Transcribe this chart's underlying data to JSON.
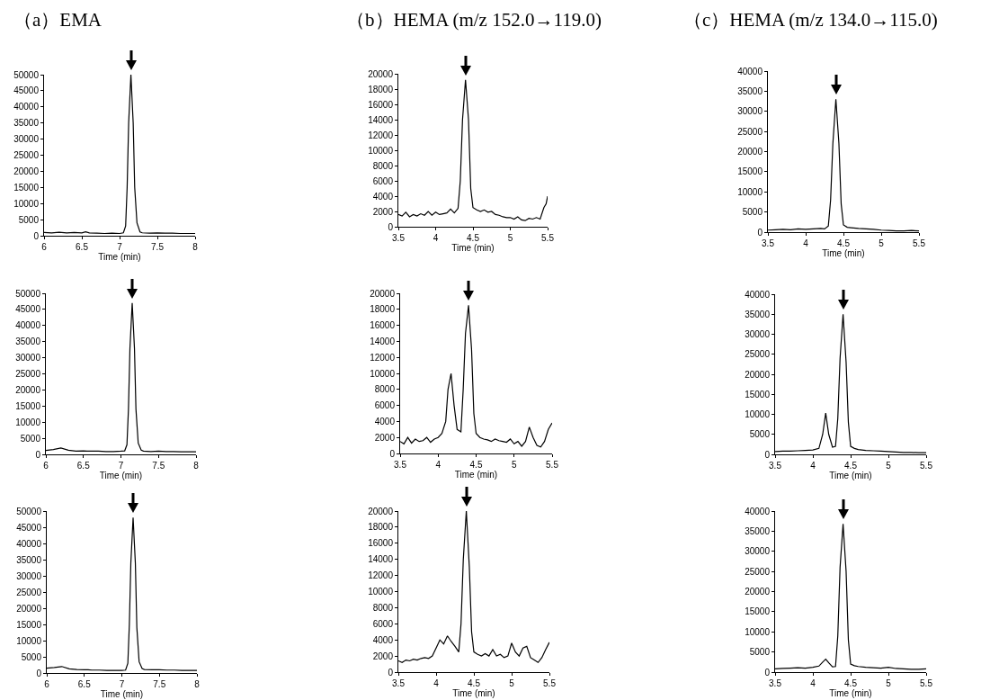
{
  "chart_data": [
    {
      "type": "line",
      "title": "（a）EMA",
      "xlabel": "Time (min)",
      "xlim": [
        6,
        8
      ],
      "xticks": [
        6,
        6.5,
        7,
        7.5,
        8
      ],
      "ylim": [
        0,
        50000
      ],
      "yticks": [
        0,
        5000,
        10000,
        15000,
        20000,
        25000,
        30000,
        35000,
        40000,
        45000,
        50000
      ],
      "grid": false,
      "marker": "none",
      "line_style": "solid",
      "series": [
        {
          "color": "#000000",
          "x": [
            6,
            6.1,
            6.2,
            6.3,
            6.4,
            6.5,
            6.55,
            6.6,
            6.7,
            6.8,
            6.9,
            7,
            7.05,
            7.08,
            7.1,
            7.12,
            7.15,
            7.18,
            7.2,
            7.23,
            7.27,
            7.3,
            7.4,
            7.5,
            7.6,
            7.7,
            7.8,
            7.9,
            8
          ],
          "values": [
            1000,
            900,
            1100,
            900,
            1000,
            900,
            1200,
            900,
            800,
            700,
            800,
            700,
            900,
            3000,
            15000,
            35000,
            50000,
            35000,
            15000,
            4000,
            1200,
            900,
            800,
            900,
            800,
            800,
            700,
            700,
            700
          ]
        }
      ]
    },
    {
      "type": "line",
      "title": "（b）HEMA (m/z 152.0→119.0)",
      "xlabel": "Time (min)",
      "xlim": [
        3.5,
        5.5
      ],
      "xticks": [
        3.5,
        4,
        4.5,
        5,
        5.5
      ],
      "ylim": [
        0,
        20000
      ],
      "yticks": [
        0,
        2000,
        4000,
        6000,
        8000,
        10000,
        12000,
        14000,
        16000,
        18000,
        20000
      ],
      "grid": false,
      "marker": "none",
      "line_style": "solid",
      "series": [
        {
          "color": "#000000",
          "x": [
            3.5,
            3.55,
            3.6,
            3.65,
            3.7,
            3.75,
            3.8,
            3.85,
            3.9,
            3.95,
            4,
            4.05,
            4.1,
            4.15,
            4.2,
            4.25,
            4.3,
            4.33,
            4.36,
            4.4,
            4.44,
            4.47,
            4.5,
            4.55,
            4.6,
            4.65,
            4.7,
            4.75,
            4.8,
            4.85,
            4.9,
            4.95,
            5,
            5.05,
            5.1,
            5.15,
            5.2,
            5.25,
            5.3,
            5.35,
            5.4,
            5.45,
            5.48,
            5.5
          ],
          "values": [
            1600,
            1400,
            1900,
            1300,
            1600,
            1400,
            1700,
            1500,
            2000,
            1500,
            1900,
            1600,
            1700,
            1800,
            2300,
            1800,
            2400,
            6000,
            14000,
            19200,
            14000,
            5000,
            2500,
            2200,
            2000,
            2200,
            1900,
            2000,
            1600,
            1500,
            1300,
            1200,
            1200,
            1000,
            1300,
            900,
            800,
            1100,
            1000,
            1200,
            1000,
            2500,
            3000,
            4000
          ]
        }
      ]
    },
    {
      "type": "line",
      "title": "（c）HEMA (m/z 134.0→115.0)",
      "xlabel": "Time (min)",
      "xlim": [
        3.5,
        5.5
      ],
      "xticks": [
        3.5,
        4,
        4.5,
        5,
        5.5
      ],
      "ylim": [
        0,
        40000
      ],
      "yticks": [
        0,
        5000,
        10000,
        15000,
        20000,
        25000,
        30000,
        35000,
        40000
      ],
      "grid": false,
      "marker": "none",
      "line_style": "solid",
      "series": [
        {
          "color": "#000000",
          "x": [
            3.5,
            3.6,
            3.7,
            3.8,
            3.9,
            4,
            4.1,
            4.2,
            4.25,
            4.3,
            4.33,
            4.36,
            4.4,
            4.44,
            4.47,
            4.5,
            4.55,
            4.6,
            4.7,
            4.8,
            4.9,
            5,
            5.1,
            5.2,
            5.3,
            5.4,
            5.5
          ],
          "values": [
            500,
            600,
            700,
            600,
            800,
            700,
            800,
            900,
            800,
            1500,
            8000,
            22000,
            33000,
            22000,
            7000,
            1800,
            1200,
            1100,
            900,
            800,
            700,
            500,
            400,
            300,
            300,
            400,
            300
          ]
        }
      ]
    },
    {
      "type": "line",
      "xlabel": "Time (min)",
      "xlim": [
        6,
        8
      ],
      "xticks": [
        6,
        6.5,
        7,
        7.5,
        8
      ],
      "ylim": [
        0,
        50000
      ],
      "yticks": [
        0,
        5000,
        10000,
        15000,
        20000,
        25000,
        30000,
        35000,
        40000,
        45000,
        50000
      ],
      "grid": false,
      "marker": "none",
      "line_style": "solid",
      "series": [
        {
          "color": "#000000",
          "x": [
            6,
            6.1,
            6.2,
            6.3,
            6.4,
            6.5,
            6.55,
            6.6,
            6.7,
            6.8,
            6.9,
            7,
            7.05,
            7.08,
            7.1,
            7.12,
            7.15,
            7.18,
            7.2,
            7.23,
            7.27,
            7.3,
            7.4,
            7.5,
            7.6,
            7.7,
            7.8,
            7.9,
            8
          ],
          "values": [
            1200,
            1500,
            2000,
            1300,
            1000,
            1100,
            1000,
            1000,
            1000,
            900,
            900,
            1000,
            1100,
            3000,
            14000,
            33000,
            47000,
            33000,
            14000,
            3500,
            1300,
            1000,
            900,
            1000,
            900,
            900,
            800,
            800,
            800
          ]
        }
      ]
    },
    {
      "type": "line",
      "xlabel": "Time (min)",
      "xlim": [
        3.5,
        5.5
      ],
      "xticks": [
        3.5,
        4,
        4.5,
        5,
        5.5
      ],
      "ylim": [
        0,
        20000
      ],
      "yticks": [
        0,
        2000,
        4000,
        6000,
        8000,
        10000,
        12000,
        14000,
        16000,
        18000,
        20000
      ],
      "grid": false,
      "marker": "none",
      "line_style": "solid",
      "series": [
        {
          "color": "#000000",
          "x": [
            3.5,
            3.55,
            3.6,
            3.65,
            3.7,
            3.75,
            3.8,
            3.85,
            3.9,
            3.95,
            4,
            4.05,
            4.1,
            4.13,
            4.17,
            4.21,
            4.25,
            4.3,
            4.33,
            4.36,
            4.4,
            4.44,
            4.47,
            4.5,
            4.55,
            4.6,
            4.65,
            4.7,
            4.75,
            4.8,
            4.85,
            4.9,
            4.95,
            5,
            5.05,
            5.1,
            5.15,
            5.2,
            5.25,
            5.3,
            5.35,
            5.4,
            5.45,
            5.5
          ],
          "values": [
            1500,
            1200,
            2000,
            1300,
            1800,
            1500,
            1600,
            2000,
            1400,
            1800,
            2000,
            2500,
            4000,
            8000,
            10000,
            6000,
            3000,
            2700,
            8000,
            15000,
            18500,
            13000,
            5000,
            2500,
            2000,
            1800,
            1700,
            1500,
            1800,
            1600,
            1500,
            1400,
            1800,
            1200,
            1500,
            900,
            1500,
            3300,
            2000,
            1000,
            800,
            1500,
            3000,
            3800
          ]
        }
      ]
    },
    {
      "type": "line",
      "xlabel": "Time (min)",
      "xlim": [
        3.5,
        5.5
      ],
      "xticks": [
        3.5,
        4,
        4.5,
        5,
        5.5
      ],
      "ylim": [
        0,
        40000
      ],
      "yticks": [
        0,
        5000,
        10000,
        15000,
        20000,
        25000,
        30000,
        35000,
        40000
      ],
      "grid": false,
      "marker": "none",
      "line_style": "solid",
      "series": [
        {
          "color": "#000000",
          "x": [
            3.5,
            3.6,
            3.7,
            3.8,
            3.9,
            4,
            4.08,
            4.13,
            4.17,
            4.21,
            4.26,
            4.3,
            4.33,
            4.36,
            4.4,
            4.44,
            4.47,
            4.5,
            4.55,
            4.6,
            4.7,
            4.8,
            4.9,
            5,
            5.1,
            5.2,
            5.3,
            5.4,
            5.5
          ],
          "values": [
            700,
            800,
            800,
            900,
            1000,
            1100,
            1500,
            5000,
            10300,
            5000,
            1800,
            2000,
            9000,
            24000,
            35000,
            23000,
            8000,
            2000,
            1500,
            1200,
            1000,
            900,
            800,
            700,
            600,
            500,
            500,
            400,
            400
          ]
        }
      ]
    },
    {
      "type": "line",
      "xlabel": "Time (min)",
      "xlim": [
        6,
        8
      ],
      "xticks": [
        6,
        6.5,
        7,
        7.5,
        8
      ],
      "ylim": [
        0,
        50000
      ],
      "yticks": [
        0,
        5000,
        10000,
        15000,
        20000,
        25000,
        30000,
        35000,
        40000,
        45000,
        50000
      ],
      "grid": false,
      "marker": "none",
      "line_style": "solid",
      "series": [
        {
          "color": "#000000",
          "x": [
            6,
            6.1,
            6.2,
            6.3,
            6.4,
            6.5,
            6.55,
            6.6,
            6.7,
            6.8,
            6.9,
            7,
            7.05,
            7.08,
            7.1,
            7.12,
            7.15,
            7.18,
            7.2,
            7.23,
            7.27,
            7.3,
            7.4,
            7.5,
            7.6,
            7.7,
            7.8,
            7.9,
            8
          ],
          "values": [
            1500,
            1700,
            2000,
            1300,
            1100,
            1000,
            1000,
            900,
            900,
            800,
            800,
            800,
            900,
            3000,
            15000,
            34000,
            48000,
            34000,
            14000,
            3500,
            1400,
            1100,
            1000,
            1000,
            900,
            900,
            800,
            800,
            800
          ]
        }
      ]
    },
    {
      "type": "line",
      "xlabel": "Time (min)",
      "xlim": [
        3.5,
        5.5
      ],
      "xticks": [
        3.5,
        4,
        4.5,
        5,
        5.5
      ],
      "ylim": [
        0,
        20000
      ],
      "yticks": [
        0,
        2000,
        4000,
        6000,
        8000,
        10000,
        12000,
        14000,
        16000,
        18000,
        20000
      ],
      "grid": false,
      "marker": "none",
      "line_style": "solid",
      "series": [
        {
          "color": "#000000",
          "x": [
            3.5,
            3.55,
            3.6,
            3.65,
            3.7,
            3.75,
            3.8,
            3.85,
            3.9,
            3.95,
            4,
            4.05,
            4.1,
            4.15,
            4.2,
            4.25,
            4.3,
            4.33,
            4.36,
            4.4,
            4.44,
            4.47,
            4.5,
            4.55,
            4.6,
            4.65,
            4.7,
            4.75,
            4.8,
            4.85,
            4.9,
            4.95,
            5,
            5.05,
            5.1,
            5.15,
            5.2,
            5.25,
            5.3,
            5.35,
            5.4,
            5.45,
            5.5
          ],
          "values": [
            1400,
            1200,
            1500,
            1400,
            1600,
            1500,
            1700,
            1800,
            1700,
            2000,
            3000,
            4000,
            3500,
            4500,
            3800,
            3200,
            2500,
            6000,
            14000,
            20000,
            13000,
            5000,
            2500,
            2200,
            2000,
            2300,
            2000,
            2800,
            2000,
            2200,
            1800,
            2000,
            3600,
            2500,
            2000,
            3000,
            3200,
            1800,
            1500,
            1200,
            1800,
            2800,
            3700
          ]
        }
      ]
    },
    {
      "type": "line",
      "xlabel": "Time (min)",
      "xlim": [
        3.5,
        5.5
      ],
      "xticks": [
        3.5,
        4,
        4.5,
        5,
        5.5
      ],
      "ylim": [
        0,
        40000
      ],
      "yticks": [
        0,
        5000,
        10000,
        15000,
        20000,
        25000,
        30000,
        35000,
        40000
      ],
      "grid": false,
      "marker": "none",
      "line_style": "solid",
      "series": [
        {
          "color": "#000000",
          "x": [
            3.5,
            3.6,
            3.7,
            3.8,
            3.9,
            4,
            4.08,
            4.13,
            4.17,
            4.21,
            4.26,
            4.3,
            4.33,
            4.36,
            4.4,
            4.44,
            4.47,
            4.5,
            4.55,
            4.6,
            4.7,
            4.8,
            4.9,
            5,
            5.1,
            5.2,
            5.3,
            5.4,
            5.5
          ],
          "values": [
            800,
            900,
            1000,
            1100,
            1000,
            1200,
            1500,
            2500,
            3200,
            2300,
            1300,
            1400,
            9000,
            26000,
            36800,
            25000,
            8000,
            2000,
            1600,
            1400,
            1200,
            1100,
            1000,
            1200,
            900,
            800,
            700,
            700,
            800
          ]
        }
      ]
    }
  ]
}
